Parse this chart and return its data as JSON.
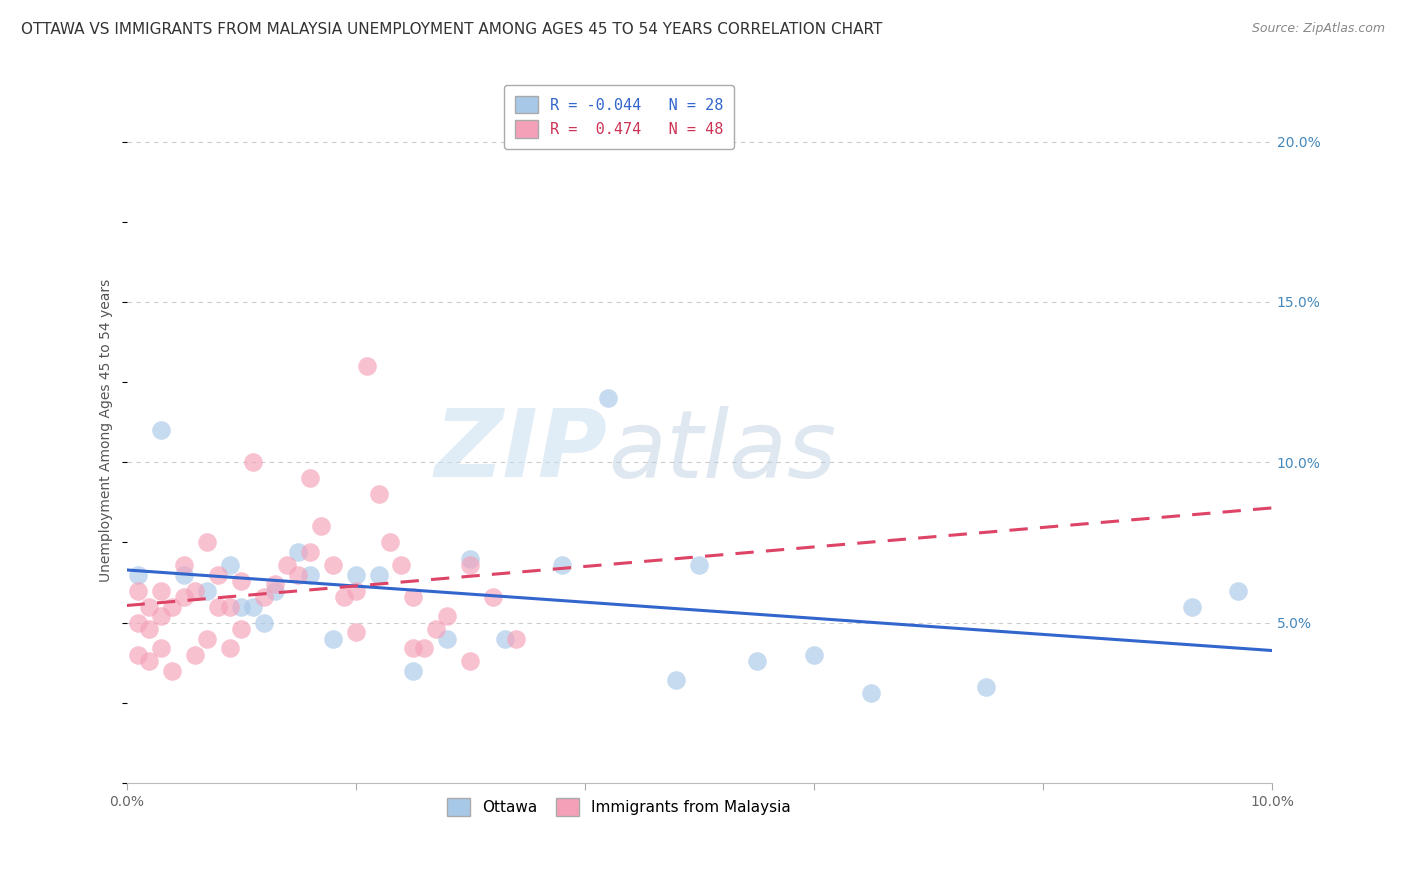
{
  "title": "OTTAWA VS IMMIGRANTS FROM MALAYSIA UNEMPLOYMENT AMONG AGES 45 TO 54 YEARS CORRELATION CHART",
  "source": "Source: ZipAtlas.com",
  "ylabel": "Unemployment Among Ages 45 to 54 years",
  "xlim": [
    0.0,
    0.1
  ],
  "ylim": [
    0.0,
    0.22
  ],
  "right_yticks": [
    0.05,
    0.1,
    0.15,
    0.2
  ],
  "right_yticklabels": [
    "5.0%",
    "10.0%",
    "15.0%",
    "20.0%"
  ],
  "xticks": [
    0.0,
    0.02,
    0.04,
    0.06,
    0.08,
    0.1
  ],
  "xticklabels": [
    "0.0%",
    "",
    "",
    "",
    "",
    "10.0%"
  ],
  "series": [
    {
      "label": "Ottawa",
      "color": "#a8c8e8",
      "edge_color": "#6699cc",
      "R": -0.044,
      "N": 28,
      "trend_color": "#3366cc",
      "trend_style": "solid",
      "x": [
        0.001,
        0.003,
        0.005,
        0.007,
        0.009,
        0.01,
        0.011,
        0.012,
        0.013,
        0.015,
        0.016,
        0.018,
        0.02,
        0.022,
        0.025,
        0.028,
        0.03,
        0.033,
        0.038,
        0.042,
        0.048,
        0.05,
        0.055,
        0.06,
        0.065,
        0.075,
        0.093,
        0.097
      ],
      "y": [
        0.065,
        0.11,
        0.065,
        0.06,
        0.068,
        0.055,
        0.055,
        0.05,
        0.06,
        0.072,
        0.065,
        0.045,
        0.065,
        0.065,
        0.035,
        0.045,
        0.07,
        0.045,
        0.068,
        0.12,
        0.032,
        0.068,
        0.038,
        0.04,
        0.028,
        0.03,
        0.055,
        0.06
      ]
    },
    {
      "label": "Immigrants from Malaysia",
      "color": "#f4a0b8",
      "edge_color": "#cc6688",
      "R": 0.474,
      "N": 48,
      "trend_color": "#dd4466",
      "trend_style": "dashed",
      "x": [
        0.001,
        0.001,
        0.001,
        0.002,
        0.002,
        0.002,
        0.003,
        0.003,
        0.003,
        0.004,
        0.004,
        0.005,
        0.005,
        0.006,
        0.006,
        0.007,
        0.007,
        0.008,
        0.008,
        0.009,
        0.009,
        0.01,
        0.01,
        0.011,
        0.012,
        0.013,
        0.014,
        0.015,
        0.016,
        0.017,
        0.018,
        0.019,
        0.02,
        0.021,
        0.022,
        0.023,
        0.024,
        0.025,
        0.026,
        0.027,
        0.028,
        0.03,
        0.032,
        0.034,
        0.016,
        0.02,
        0.025,
        0.03
      ],
      "y": [
        0.04,
        0.05,
        0.06,
        0.038,
        0.048,
        0.055,
        0.042,
        0.052,
        0.06,
        0.035,
        0.055,
        0.058,
        0.068,
        0.04,
        0.06,
        0.045,
        0.075,
        0.055,
        0.065,
        0.042,
        0.055,
        0.048,
        0.063,
        0.1,
        0.058,
        0.062,
        0.068,
        0.065,
        0.072,
        0.08,
        0.068,
        0.058,
        0.047,
        0.13,
        0.09,
        0.075,
        0.068,
        0.058,
        0.042,
        0.048,
        0.052,
        0.068,
        0.058,
        0.045,
        0.095,
        0.06,
        0.042,
        0.038
      ]
    }
  ],
  "watermark_zip": "ZIP",
  "watermark_atlas": "atlas",
  "background_color": "#ffffff",
  "grid_color": "#cccccc",
  "title_fontsize": 11,
  "axis_label_fontsize": 10,
  "tick_fontsize": 10,
  "legend_fontsize": 11,
  "scatter_size": 180,
  "scatter_alpha": 0.65
}
